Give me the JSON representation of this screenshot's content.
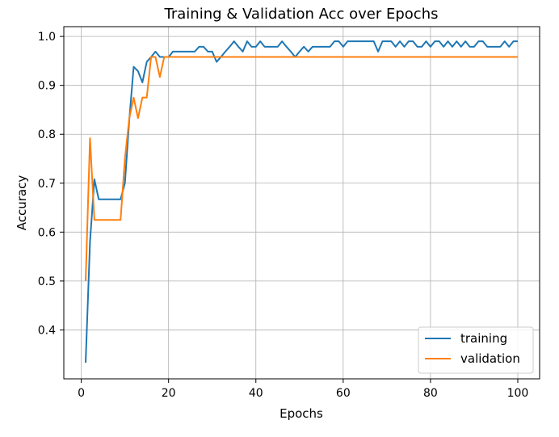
{
  "chart_data": {
    "type": "line",
    "title": "Training & Validation Acc over Epochs",
    "xlabel": "Epochs",
    "ylabel": "Accuracy",
    "xlim": [
      -4,
      105
    ],
    "ylim": [
      0.3,
      1.02
    ],
    "x_ticks": [
      0,
      20,
      40,
      60,
      80,
      100
    ],
    "y_ticks": [
      0.4,
      0.5,
      0.6,
      0.7,
      0.8,
      0.9,
      1.0
    ],
    "x_tick_labels": [
      "0",
      "20",
      "40",
      "60",
      "80",
      "100"
    ],
    "y_tick_labels": [
      "0.4",
      "0.5",
      "0.6",
      "0.7",
      "0.8",
      "0.9",
      "1.0"
    ],
    "grid": true,
    "legend_position": "lower-right",
    "series": [
      {
        "name": "training",
        "color": "#1f77b4",
        "x": [
          1,
          2,
          3,
          4,
          5,
          6,
          7,
          8,
          9,
          10,
          11,
          12,
          13,
          14,
          15,
          16,
          17,
          18,
          19,
          20,
          21,
          22,
          23,
          24,
          25,
          26,
          27,
          28,
          29,
          30,
          31,
          32,
          33,
          34,
          35,
          36,
          37,
          38,
          39,
          40,
          41,
          42,
          43,
          44,
          45,
          46,
          47,
          48,
          49,
          50,
          51,
          52,
          53,
          54,
          55,
          56,
          57,
          58,
          59,
          60,
          61,
          62,
          63,
          64,
          65,
          66,
          67,
          68,
          69,
          70,
          71,
          72,
          73,
          74,
          75,
          76,
          77,
          78,
          79,
          80,
          81,
          82,
          83,
          84,
          85,
          86,
          87,
          88,
          89,
          90,
          91,
          92,
          93,
          94,
          95,
          96,
          97,
          98,
          99,
          100
        ],
        "values": [
          0.333,
          0.58,
          0.708,
          0.667,
          0.667,
          0.667,
          0.667,
          0.667,
          0.667,
          0.7,
          0.83,
          0.938,
          0.929,
          0.906,
          0.948,
          0.958,
          0.969,
          0.958,
          0.958,
          0.958,
          0.969,
          0.969,
          0.969,
          0.969,
          0.969,
          0.969,
          0.979,
          0.979,
          0.969,
          0.969,
          0.948,
          0.958,
          0.969,
          0.979,
          0.99,
          0.979,
          0.969,
          0.99,
          0.979,
          0.979,
          0.99,
          0.979,
          0.979,
          0.979,
          0.979,
          0.99,
          0.979,
          0.969,
          0.958,
          0.969,
          0.979,
          0.969,
          0.979,
          0.979,
          0.979,
          0.979,
          0.979,
          0.99,
          0.99,
          0.979,
          0.99,
          0.99,
          0.99,
          0.99,
          0.99,
          0.99,
          0.99,
          0.969,
          0.99,
          0.99,
          0.99,
          0.979,
          0.99,
          0.979,
          0.99,
          0.99,
          0.979,
          0.979,
          0.99,
          0.979,
          0.99,
          0.99,
          0.979,
          0.99,
          0.979,
          0.99,
          0.979,
          0.99,
          0.979,
          0.979,
          0.99,
          0.99,
          0.979,
          0.979,
          0.979,
          0.979,
          0.99,
          0.979,
          0.99,
          0.99
        ]
      },
      {
        "name": "validation",
        "color": "#ff7f0e",
        "x": [
          1,
          2,
          3,
          4,
          5,
          6,
          7,
          8,
          9,
          10,
          11,
          12,
          13,
          14,
          15,
          16,
          17,
          18,
          19,
          20,
          30,
          40,
          50,
          60,
          70,
          80,
          90,
          100
        ],
        "values": [
          0.5,
          0.792,
          0.625,
          0.625,
          0.625,
          0.625,
          0.625,
          0.625,
          0.625,
          0.75,
          0.833,
          0.875,
          0.833,
          0.875,
          0.875,
          0.958,
          0.958,
          0.917,
          0.958,
          0.958,
          0.958,
          0.958,
          0.958,
          0.958,
          0.958,
          0.958,
          0.958,
          0.958
        ]
      }
    ]
  }
}
